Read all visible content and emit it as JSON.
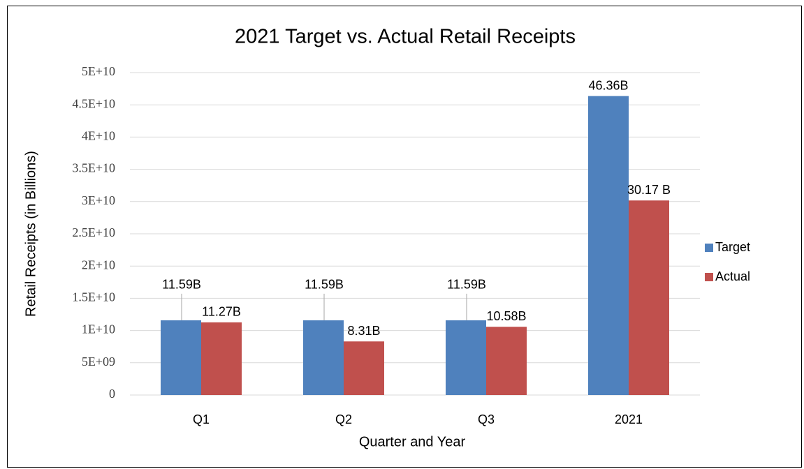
{
  "chart_data": {
    "type": "bar",
    "title": "2021 Target vs. Actual Retail Receipts",
    "y_label": "Retail Receipts (in Billions)",
    "x_label": "Quarter and Year",
    "categories": [
      "Q1",
      "Q2",
      "Q3",
      "2021"
    ],
    "series": [
      {
        "name": "Target",
        "color": "#4f81bd",
        "values": [
          11590000000,
          11590000000,
          11590000000,
          46360000000
        ],
        "value_labels": [
          "11.59B",
          "11.59B",
          "11.59B",
          "46.36B"
        ]
      },
      {
        "name": "Actual",
        "color": "#c0504d",
        "values": [
          11270000000,
          8310000000,
          10580000000,
          30170000000
        ],
        "value_labels": [
          "11.27B",
          "8.31B",
          "10.58B",
          "30.17 B"
        ]
      }
    ],
    "ylim": [
      0,
      50000000000
    ],
    "yticks": [
      0,
      {
        "value": 5000000000,
        "label": "5E+09"
      },
      {
        "value": 10000000000,
        "label": "1E+10"
      },
      {
        "value": 15000000000,
        "label": "1.5E+10"
      },
      {
        "value": 20000000000,
        "label": "2E+10"
      },
      {
        "value": 25000000000,
        "label": "2.5E+10"
      },
      {
        "value": 30000000000,
        "label": "3E+10"
      },
      {
        "value": 35000000000,
        "label": "3.5E+10"
      },
      {
        "value": 40000000000,
        "label": "4E+10"
      },
      {
        "value": 45000000000,
        "label": "4.5E+10"
      },
      {
        "value": 50000000000,
        "label": "5E+10"
      }
    ],
    "grid": true,
    "legend": "right"
  }
}
